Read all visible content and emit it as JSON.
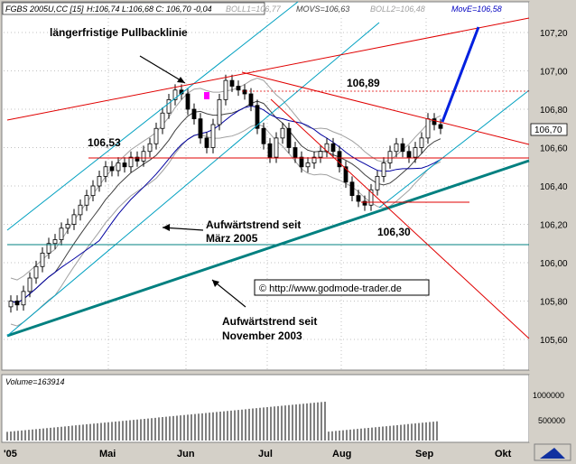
{
  "header": {
    "symbol_text": "FGBS 2005U,CC [15]",
    "ohlc_text": "H:106,74 L:106,68 C: 106,70 -0,04",
    "boll1_text": "BOLL1=106,77",
    "movs_text": "MOVS=106,63",
    "boll2_text": "BOLL2=106,48",
    "move_text": "MovE=106,58"
  },
  "annotations": {
    "pullback": "längerfristige Pullbacklinie",
    "trend_march_1": "Aufwärtstrend seit",
    "trend_march_2": "März 2005",
    "trend_nov_1": "Aufwärtstrend seit",
    "trend_nov_2": "November 2003",
    "level_10689": "106,89",
    "level_10653": "106,53",
    "level_10630": "106,30",
    "copyright": "© http://www.godmode-trader.de"
  },
  "price_axis": {
    "ticks": [
      "107,20",
      "107,00",
      "106,80",
      "106,60",
      "106,40",
      "106,20",
      "106,00",
      "105,80",
      "105,60"
    ],
    "last_price": "106,70"
  },
  "volume_panel": {
    "label": "Volume=163914",
    "ticks": [
      "1000000",
      "500000"
    ]
  },
  "time_axis": {
    "labels": [
      "'05",
      "Mai",
      "Jun",
      "Jul",
      "Aug",
      "Sep",
      "Okt"
    ]
  },
  "colors": {
    "background": "#ffffff",
    "candle_up": "#ffffff",
    "candle_body": "#000000",
    "trend_line_long": "#008080",
    "channel": "#00a0c0",
    "resistance": "#e00000",
    "ma_blue": "#0000a0",
    "forecast_arrow": "#0020e0",
    "highlight_box": "#ff00ff"
  },
  "chart_data": {
    "type": "candlestick",
    "title": "FGBS 2005U,CC [15]",
    "ylim": [
      105.48,
      107.3
    ],
    "x_labels": [
      "'05",
      "Mai",
      "Jun",
      "Jul",
      "Aug",
      "Sep",
      "Okt"
    ],
    "closes": [
      105.8,
      105.78,
      105.85,
      105.92,
      105.98,
      106.05,
      106.1,
      106.12,
      106.18,
      106.2,
      106.25,
      106.3,
      106.35,
      106.4,
      106.45,
      106.5,
      106.48,
      106.52,
      106.5,
      106.55,
      106.53,
      106.58,
      106.62,
      106.7,
      106.78,
      106.85,
      106.9,
      106.88,
      106.8,
      106.75,
      106.65,
      106.6,
      106.72,
      106.85,
      106.95,
      106.92,
      106.9,
      106.88,
      106.82,
      106.7,
      106.62,
      106.55,
      106.65,
      106.7,
      106.6,
      106.55,
      106.5,
      106.52,
      106.55,
      106.58,
      106.62,
      106.58,
      106.5,
      106.42,
      106.35,
      106.32,
      106.3,
      106.38,
      106.45,
      106.52,
      106.58,
      106.62,
      106.58,
      106.55,
      106.6,
      106.65,
      106.75,
      106.72,
      106.7
    ],
    "levels": [
      106.89,
      106.53,
      106.3
    ],
    "volume_ticks": [
      1000000,
      500000
    ],
    "last_volume": 163914
  }
}
